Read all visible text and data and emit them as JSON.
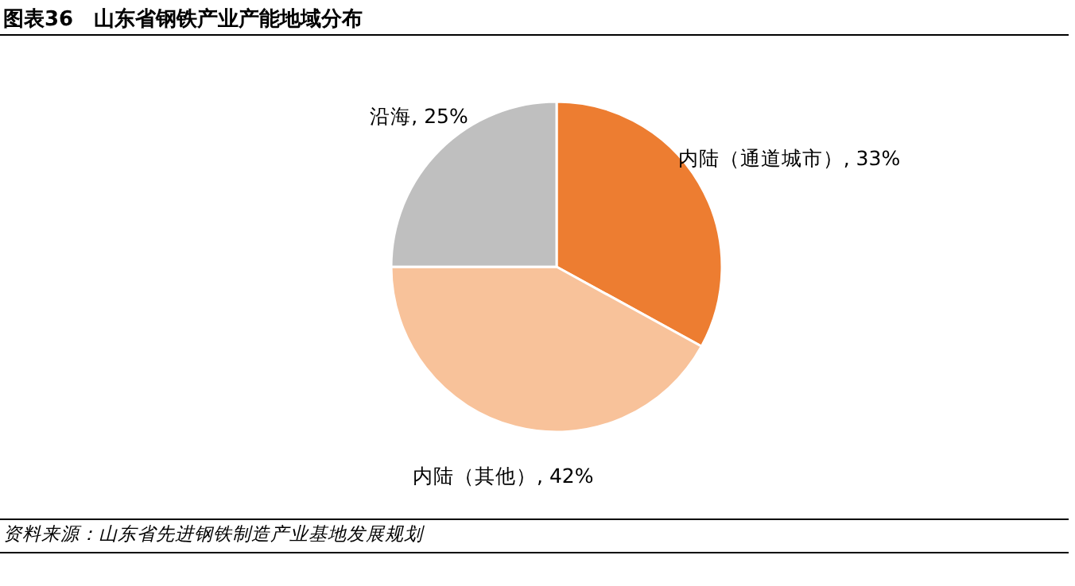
{
  "chart_data": {
    "type": "pie",
    "title": "图表36　山东省钢铁产业产能地域分布",
    "categories": [
      "内陆（通道城市）",
      "内陆（其他）",
      "沿海"
    ],
    "legend": false,
    "values": [
      33,
      42,
      25
    ],
    "value_labels": [
      "33%",
      "42%",
      "25%"
    ],
    "colors": [
      "#ed7d31",
      "#f8c29a",
      "#bfbfbf"
    ],
    "annotations": [
      "资料来源：山东省先进钢铁制造产业基地发展规划"
    ]
  }
}
